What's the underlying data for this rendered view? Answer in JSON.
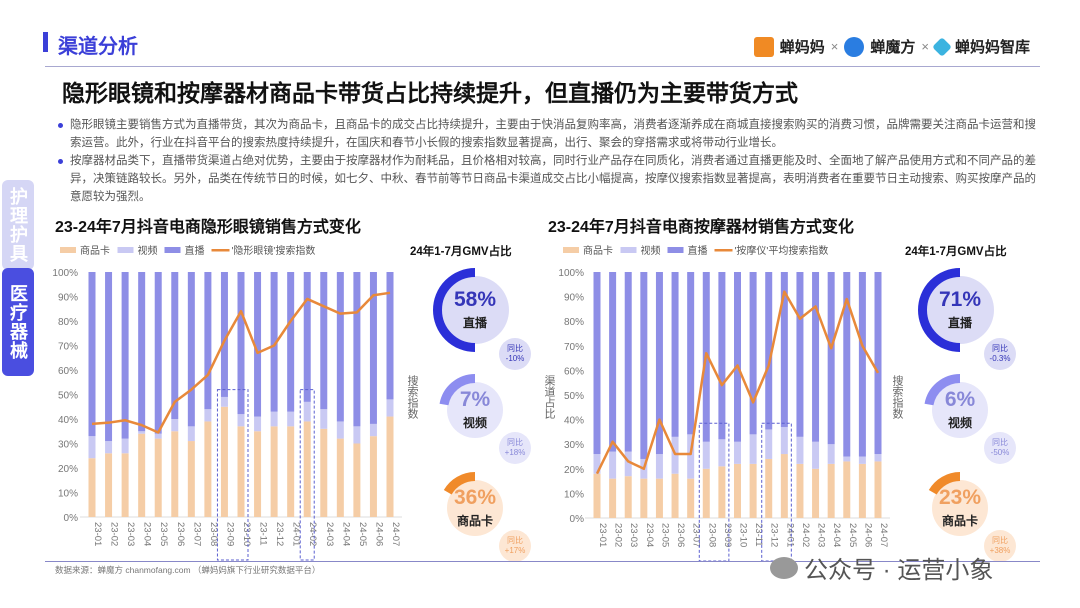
{
  "header": {
    "section": "渠道分析",
    "logos": [
      "蝉妈妈",
      "蝉魔方",
      "蝉妈妈智库"
    ],
    "separator": "×",
    "title": "隐形眼镜和按摩器材商品卡带货占比持续提升，但直播仍为主要带货方式"
  },
  "bullets": [
    "隐形眼镜主要销售方式为直播带货，其次为商品卡，且商品卡的成交占比持续提升，主要由于快消品复购率高，消费者逐渐养成在商城直接搜索购买的消费习惯，品牌需要关注商品卡运营和搜索运营。此外，行业在抖音平台的搜索热度持续提升，在国庆和春节小长假的搜索指数显著提高，出行、聚会的穿搭需求或将带动行业增长。",
    "按摩器材品类下，直播带货渠道占绝对优势，主要由于按摩器材作为耐耗品，且价格相对较高，同时行业产品存在同质化，消费者通过直播更能及时、全面地了解产品使用方式和不同产品的差异，决策链路较长。另外，品类在传统节日的时候，如七夕、中秋、春节前等节日商品卡渠道成交占比小幅提高，按摩仪搜索指数显著提高，表明消费者在重要节日主动搜索、购买按摩产品的意愿较为强烈。"
  ],
  "tabs": [
    {
      "label": "护理护具",
      "active": false
    },
    {
      "label": "医疗器械",
      "active": true
    }
  ],
  "colors": {
    "card": "#f5cda6",
    "video": "#c9c9f3",
    "live": "#8e8ee6",
    "line": "#e8893a",
    "accent": "#3b3fd8"
  },
  "chart_data": [
    {
      "type": "bar",
      "stacked": true,
      "title": "23-24年7月抖音电商隐形眼镜销售方式变化",
      "categories": [
        "23-01",
        "23-02",
        "23-03",
        "23-04",
        "23-05",
        "23-06",
        "23-07",
        "23-08",
        "23-09",
        "23-10",
        "23-11",
        "23-12",
        "24-01",
        "24-02",
        "24-03",
        "24-04",
        "24-05",
        "24-06",
        "24-07"
      ],
      "ylim": [
        0,
        100
      ],
      "yticks": [
        "0%",
        "10%",
        "20%",
        "30%",
        "40%",
        "50%",
        "60%",
        "70%",
        "80%",
        "90%",
        "100%"
      ],
      "ylabel": "",
      "y2label": "搜索指数",
      "legend": [
        "商品卡",
        "视频",
        "直播",
        "'隐形眼镜'搜索指数"
      ],
      "series": [
        {
          "name": "商品卡",
          "values": [
            24,
            26,
            26,
            34,
            32,
            35,
            31,
            39,
            45,
            37,
            35,
            37,
            37,
            39,
            36,
            32,
            30,
            33,
            41
          ]
        },
        {
          "name": "视频",
          "values": [
            9,
            5,
            6,
            1,
            2,
            5,
            6,
            5,
            4,
            5,
            6,
            6,
            6,
            8,
            8,
            7,
            7,
            5,
            7
          ]
        },
        {
          "name": "直播",
          "values": [
            67,
            69,
            68,
            65,
            66,
            60,
            63,
            56,
            51,
            58,
            59,
            57,
            57,
            53,
            56,
            61,
            63,
            62,
            52
          ]
        },
        {
          "name": "'隐形眼镜'搜索指数",
          "type": "line",
          "values": [
            38,
            38.5,
            39.5,
            37.5,
            34.5,
            47,
            52,
            58,
            72,
            84,
            67,
            70,
            80,
            89,
            86,
            83,
            83.5,
            90.5,
            91.5
          ]
        }
      ],
      "highlight": [
        [
          "23-09",
          "23-10"
        ],
        [
          "24-02",
          "24-02"
        ]
      ],
      "gmv": {
        "title": "24年1-7月GMV占比",
        "items": [
          {
            "label": "直播",
            "value": "58%",
            "yoy_label": "同比",
            "yoy": "-10%"
          },
          {
            "label": "视频",
            "value": "7%",
            "yoy_label": "同比",
            "yoy": "+18%"
          },
          {
            "label": "商品卡",
            "value": "36%",
            "yoy_label": "同比",
            "yoy": "+17%"
          }
        ]
      }
    },
    {
      "type": "bar",
      "stacked": true,
      "title": "23-24年7月抖音电商按摩器材销售方式变化",
      "categories": [
        "23-01",
        "23-02",
        "23-03",
        "23-04",
        "23-05",
        "23-06",
        "23-07",
        "23-08",
        "23-09",
        "23-10",
        "23-11",
        "23-12",
        "24-01",
        "24-02",
        "24-03",
        "24-04",
        "24-05",
        "24-06",
        "24-07"
      ],
      "ylim": [
        0,
        100
      ],
      "yticks": [
        "0%",
        "10%",
        "20%",
        "30%",
        "40%",
        "50%",
        "60%",
        "70%",
        "80%",
        "90%",
        "100%"
      ],
      "ylabel": "渠道占比",
      "y2label": "搜索指数",
      "legend": [
        "商品卡",
        "视频",
        "直播",
        "'按摩仪'平均搜索指数"
      ],
      "series": [
        {
          "name": "商品卡",
          "values": [
            18,
            16,
            17,
            16,
            16,
            18,
            16,
            20,
            21,
            22,
            22,
            24,
            26,
            22,
            20,
            22,
            23,
            22,
            23
          ]
        },
        {
          "name": "视频",
          "values": [
            8,
            11,
            10,
            8,
            10,
            15,
            18,
            11,
            11,
            9,
            12,
            12,
            11,
            11,
            11,
            8,
            2,
            3,
            3
          ]
        },
        {
          "name": "直播",
          "values": [
            74,
            73,
            73,
            76,
            74,
            67,
            66,
            69,
            68,
            69,
            66,
            64,
            63,
            67,
            69,
            70,
            75,
            75,
            74
          ]
        },
        {
          "name": "'按摩仪'平均搜索指数",
          "type": "line",
          "values": [
            18,
            31,
            23,
            20,
            40,
            26,
            26,
            67,
            54,
            62,
            47,
            62,
            92,
            81,
            86,
            69,
            89,
            70,
            59
          ]
        }
      ],
      "highlight": [
        [
          "23-08",
          "23-09"
        ],
        [
          "23-12",
          "24-01"
        ]
      ],
      "gmv": {
        "title": "24年1-7月GMV占比",
        "items": [
          {
            "label": "直播",
            "value": "71%",
            "yoy_label": "同比",
            "yoy": "-0.3%"
          },
          {
            "label": "视频",
            "value": "6%",
            "yoy_label": "同比",
            "yoy": "-50%"
          },
          {
            "label": "商品卡",
            "value": "23%",
            "yoy_label": "同比",
            "yoy": "+38%"
          }
        ]
      }
    }
  ],
  "footer": {
    "source": "数据来源：蝉魔方 chanmofang.com （蝉妈妈旗下行业研究数据平台）",
    "watermark": "公众号 · 运营小象"
  }
}
